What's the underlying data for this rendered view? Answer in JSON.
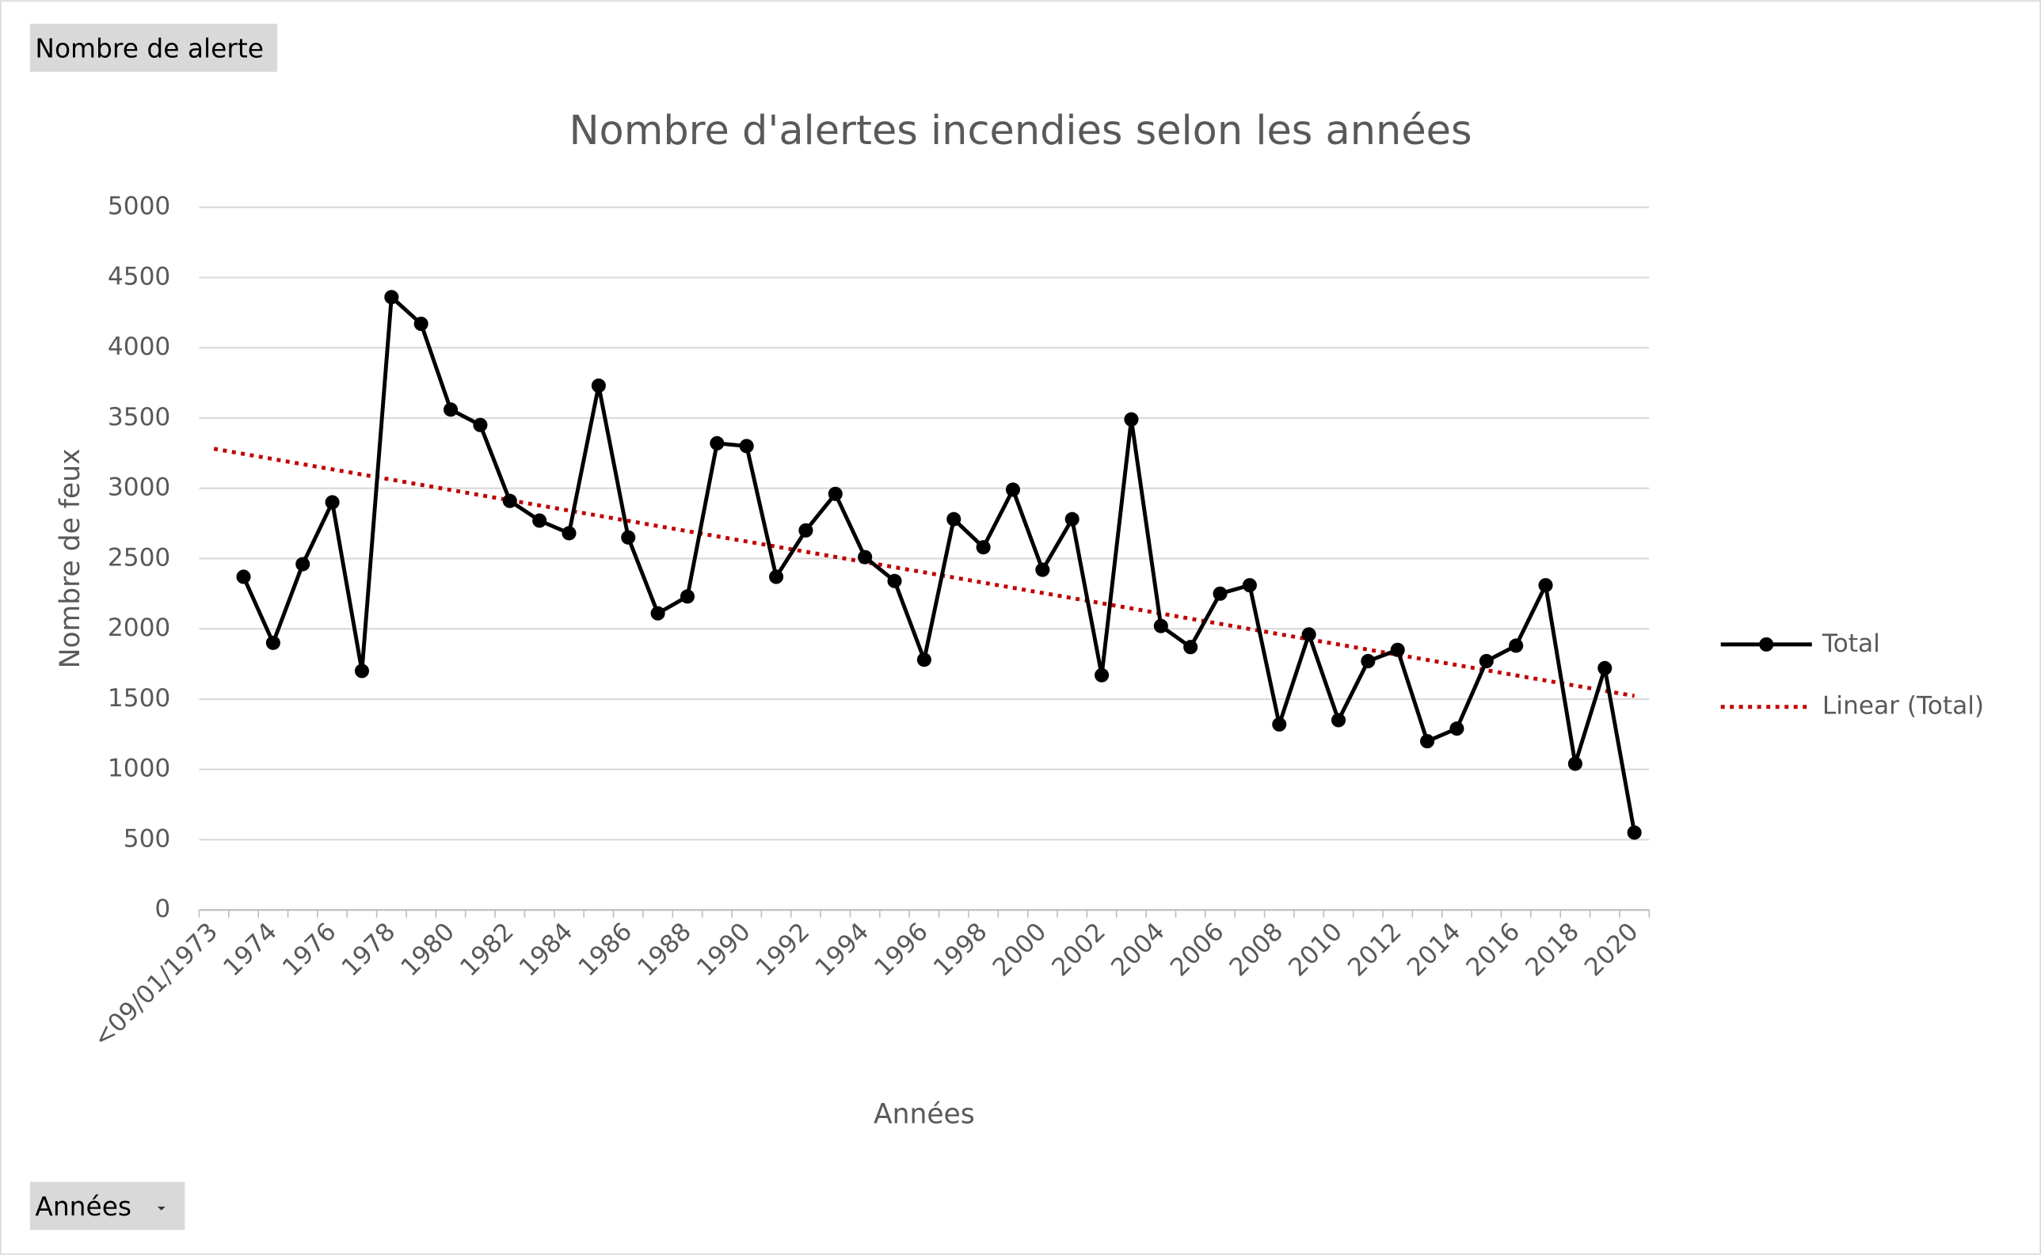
{
  "chart_data": {
    "type": "line",
    "title": "Nombre d'alertes incendies selon les années",
    "xlabel": "Années",
    "ylabel": "Nombre de feux",
    "filter_button": "Nombre de alerte",
    "axis_button": "Années",
    "categories": [
      "<09/01/1973",
      null,
      "1974",
      null,
      "1976",
      null,
      "1978",
      null,
      "1980",
      null,
      "1982",
      null,
      "1984",
      null,
      "1986",
      null,
      "1988",
      null,
      "1990",
      null,
      "1992",
      null,
      "1994",
      null,
      "1996",
      null,
      "1998",
      null,
      "2000",
      null,
      "2002",
      null,
      "2004",
      null,
      "2006",
      null,
      "2008",
      null,
      "2010",
      null,
      "2012",
      null,
      "2014",
      null,
      "2016",
      null,
      "2018",
      null,
      "2020"
    ],
    "series": [
      {
        "name": "Total",
        "color": "#000000",
        "values": [
          null,
          2370,
          1900,
          2460,
          2900,
          1700,
          4360,
          4170,
          3560,
          3450,
          2910,
          2770,
          2680,
          3730,
          2650,
          2110,
          2230,
          3320,
          3300,
          2370,
          2700,
          2960,
          2510,
          2340,
          1780,
          2780,
          2580,
          2990,
          2420,
          2780,
          1670,
          3490,
          2020,
          1870,
          2250,
          2310,
          1320,
          1960,
          1350,
          1770,
          1850,
          1200,
          1290,
          1770,
          1880,
          2310,
          1040,
          1720,
          550
        ]
      }
    ],
    "trendline": {
      "name": "Linear (Total)",
      "color": "#c00000",
      "kind": "linear"
    },
    "ylim": [
      0,
      5000
    ],
    "yticks": [
      0,
      500,
      1000,
      1500,
      2000,
      2500,
      3000,
      3500,
      4000,
      4500,
      5000
    ],
    "grid": true,
    "legend": "right"
  }
}
